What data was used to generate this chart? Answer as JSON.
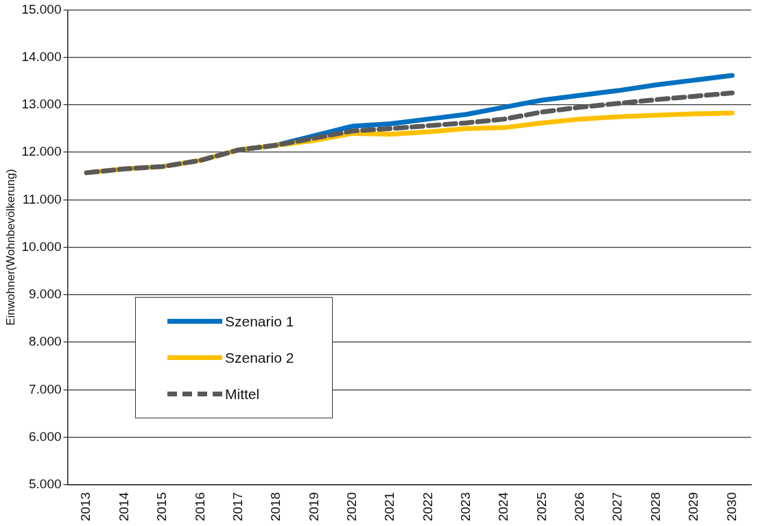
{
  "chart_data": {
    "type": "line",
    "ylabel": "Einwohner(Wohnbevölkerung)",
    "categories": [
      "2013",
      "2014",
      "2015",
      "2016",
      "2017",
      "2018",
      "2019",
      "2020",
      "2021",
      "2022",
      "2023",
      "2024",
      "2025",
      "2026",
      "2027",
      "2028",
      "2029",
      "2030"
    ],
    "series": [
      {
        "name": "Szenario 1",
        "color": "#0070c0",
        "line_style": "solid",
        "values": [
          null,
          null,
          null,
          null,
          12050,
          12150,
          12350,
          12550,
          12600,
          12700,
          12800,
          12950,
          13100,
          13200,
          13300,
          13420,
          13520,
          13620
        ]
      },
      {
        "name": "Szenario 2",
        "color": "#ffc000",
        "line_style": "solid",
        "values": [
          11570,
          11650,
          11700,
          11830,
          12050,
          12150,
          12250,
          12400,
          12380,
          12430,
          12500,
          12520,
          12620,
          12700,
          12750,
          12780,
          12810,
          12830
        ]
      },
      {
        "name": "Mittel",
        "color": "#595959",
        "line_style": "dashed",
        "values": [
          11570,
          11650,
          11700,
          11830,
          12050,
          12150,
          12300,
          12450,
          12500,
          12560,
          12620,
          12700,
          12850,
          12950,
          13030,
          13110,
          13180,
          13250
        ]
      }
    ],
    "ylim": [
      5000,
      15000
    ],
    "yticks": [
      {
        "value": 5000,
        "label": "5.000"
      },
      {
        "value": 6000,
        "label": "6.000"
      },
      {
        "value": 7000,
        "label": "7.000"
      },
      {
        "value": 8000,
        "label": "8.000"
      },
      {
        "value": 9000,
        "label": "9.000"
      },
      {
        "value": 10000,
        "label": "10.000"
      },
      {
        "value": 11000,
        "label": "11.000"
      },
      {
        "value": 12000,
        "label": "12.000"
      },
      {
        "value": 13000,
        "label": "13.000"
      },
      {
        "value": 14000,
        "label": "14.000"
      },
      {
        "value": 15000,
        "label": "15.000"
      }
    ],
    "grid": "y",
    "legend": "bottom left",
    "marker": "none"
  }
}
